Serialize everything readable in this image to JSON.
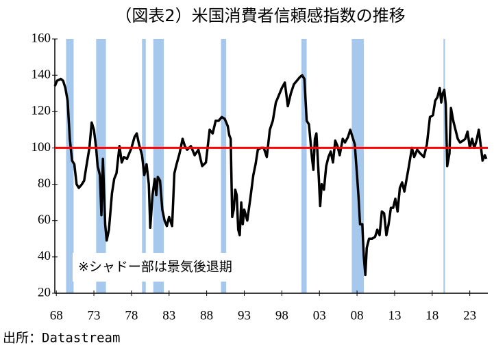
{
  "chart_data": {
    "type": "line",
    "title": "（図表2）米国消費者信頼感指数の推移",
    "annotation": "※シャドー部は景気後退期",
    "source": "出所：Datastream",
    "color": "#000000",
    "recession_color": "#a6c8ec",
    "recessions": [
      [
        1969.9,
        1970.9
      ],
      [
        1973.9,
        1975.2
      ],
      [
        1980.0,
        1980.5
      ],
      [
        1981.5,
        1982.9
      ],
      [
        1990.5,
        1991.2
      ],
      [
        2001.2,
        2001.9
      ],
      [
        2007.9,
        2009.5
      ],
      [
        2020.1,
        2020.3
      ]
    ],
    "reference_line": {
      "value": 100,
      "color": "#ff0000"
    },
    "xlim": [
      1968.4,
      2026.0
    ],
    "ylim": [
      20,
      160
    ],
    "yticks": [
      20,
      40,
      60,
      80,
      100,
      120,
      140,
      160
    ],
    "xticks": [
      {
        "value": 1968.6,
        "label": "68"
      },
      {
        "value": 1973.6,
        "label": "73"
      },
      {
        "value": 1978.6,
        "label": "78"
      },
      {
        "value": 1983.6,
        "label": "83"
      },
      {
        "value": 1988.6,
        "label": "88"
      },
      {
        "value": 1993.6,
        "label": "93"
      },
      {
        "value": 1998.6,
        "label": "98"
      },
      {
        "value": 2003.6,
        "label": "03"
      },
      {
        "value": 2008.6,
        "label": "08"
      },
      {
        "value": 2013.6,
        "label": "13"
      },
      {
        "value": 2018.6,
        "label": "18"
      },
      {
        "value": 2023.6,
        "label": "23"
      }
    ],
    "x": [
      1968.4,
      1968.7,
      1969.2,
      1969.5,
      1969.8,
      1970.1,
      1970.4,
      1970.7,
      1971.0,
      1971.3,
      1971.6,
      1972.0,
      1972.3,
      1972.6,
      1973.0,
      1973.3,
      1973.6,
      1973.9,
      1974.1,
      1974.4,
      1974.6,
      1974.8,
      1975.1,
      1975.3,
      1975.6,
      1976.0,
      1976.3,
      1976.6,
      1977.0,
      1977.3,
      1977.6,
      1978.0,
      1978.3,
      1978.6,
      1979.0,
      1979.3,
      1979.6,
      1980.0,
      1980.3,
      1980.6,
      1980.9,
      1981.1,
      1981.4,
      1981.7,
      1981.9,
      1982.1,
      1982.4,
      1982.7,
      1983.0,
      1983.3,
      1983.6,
      1984.0,
      1984.3,
      1984.6,
      1985.0,
      1985.4,
      1985.7,
      1986.0,
      1986.5,
      1987.0,
      1987.5,
      1988.0,
      1988.5,
      1989.0,
      1989.4,
      1989.8,
      1990.2,
      1990.6,
      1991.0,
      1991.4,
      1991.6,
      1991.8,
      1992.0,
      1992.2,
      1992.4,
      1992.6,
      1992.8,
      1993.0,
      1993.2,
      1993.4,
      1993.6,
      1994.0,
      1994.4,
      1994.8,
      1995.1,
      1995.4,
      1995.8,
      1996.2,
      1996.6,
      1997.0,
      1997.4,
      1997.8,
      1998.2,
      1998.6,
      1999.0,
      1999.4,
      1999.8,
      2000.2,
      2000.6,
      2001.0,
      2001.3,
      2001.6,
      2001.9,
      2002.2,
      2002.4,
      2002.6,
      2002.8,
      2003.0,
      2003.2,
      2003.5,
      2003.7,
      2003.9,
      2004.2,
      2004.5,
      2004.8,
      2005.1,
      2005.4,
      2005.7,
      2006.0,
      2006.3,
      2006.7,
      2007.0,
      2007.4,
      2007.7,
      2008.0,
      2008.3,
      2008.6,
      2008.8,
      2009.0,
      2009.3,
      2009.5,
      2009.7,
      2009.9,
      2010.2,
      2010.6,
      2011.0,
      2011.3,
      2011.6,
      2011.9,
      2012.2,
      2012.5,
      2012.8,
      2013.1,
      2013.4,
      2013.7,
      2014.0,
      2014.3,
      2014.6,
      2014.9,
      2015.2,
      2015.5,
      2015.9,
      2016.2,
      2016.6,
      2017.0,
      2017.5,
      2017.9,
      2018.3,
      2018.7,
      2019.0,
      2019.3,
      2019.6,
      2019.8,
      2020.0,
      2020.2,
      2020.4,
      2020.6,
      2020.9,
      2021.1,
      2021.4,
      2021.7,
      2022.0,
      2022.3,
      2022.7,
      2023.0,
      2023.3,
      2023.6,
      2023.9,
      2024.2,
      2024.5,
      2024.8,
      2025.1,
      2025.3,
      2025.6,
      2025.8
    ],
    "values": [
      134,
      137,
      138,
      137,
      133,
      126,
      105,
      93,
      91,
      80,
      78,
      80,
      82,
      90,
      100,
      114,
      110,
      100,
      90,
      85,
      63,
      94,
      58,
      49,
      55,
      75,
      83,
      86,
      101,
      92,
      95,
      94,
      97,
      100,
      106,
      108,
      102,
      96,
      85,
      91,
      80,
      56,
      74,
      83,
      74,
      84,
      82,
      66,
      60,
      57,
      62,
      57,
      86,
      91,
      97,
      105,
      101,
      99,
      101,
      96,
      99,
      90,
      92,
      110,
      108,
      115,
      115,
      117,
      116,
      112,
      107,
      105,
      62,
      66,
      77,
      74,
      55,
      52,
      70,
      58,
      66,
      60,
      72,
      85,
      91,
      99,
      100,
      100,
      95,
      110,
      115,
      125,
      129,
      133,
      136,
      123,
      130,
      135,
      137,
      139,
      140,
      138,
      115,
      113,
      104,
      95,
      88,
      105,
      108,
      85,
      68,
      80,
      77,
      90,
      95,
      98,
      92,
      104,
      101,
      96,
      105,
      103,
      106,
      110,
      106,
      102,
      85,
      73,
      58,
      58,
      40,
      30,
      45,
      50,
      50,
      51,
      55,
      52,
      65,
      64,
      52,
      58,
      67,
      67,
      72,
      65,
      78,
      81,
      76,
      83,
      90,
      100,
      95,
      99,
      97,
      95,
      102,
      117,
      118,
      126,
      128,
      133,
      125,
      130,
      132,
      124,
      90,
      97,
      122,
      115,
      110,
      105,
      103,
      104,
      105,
      109,
      100,
      105,
      100,
      104,
      110,
      100,
      93,
      96,
      94
    ]
  }
}
